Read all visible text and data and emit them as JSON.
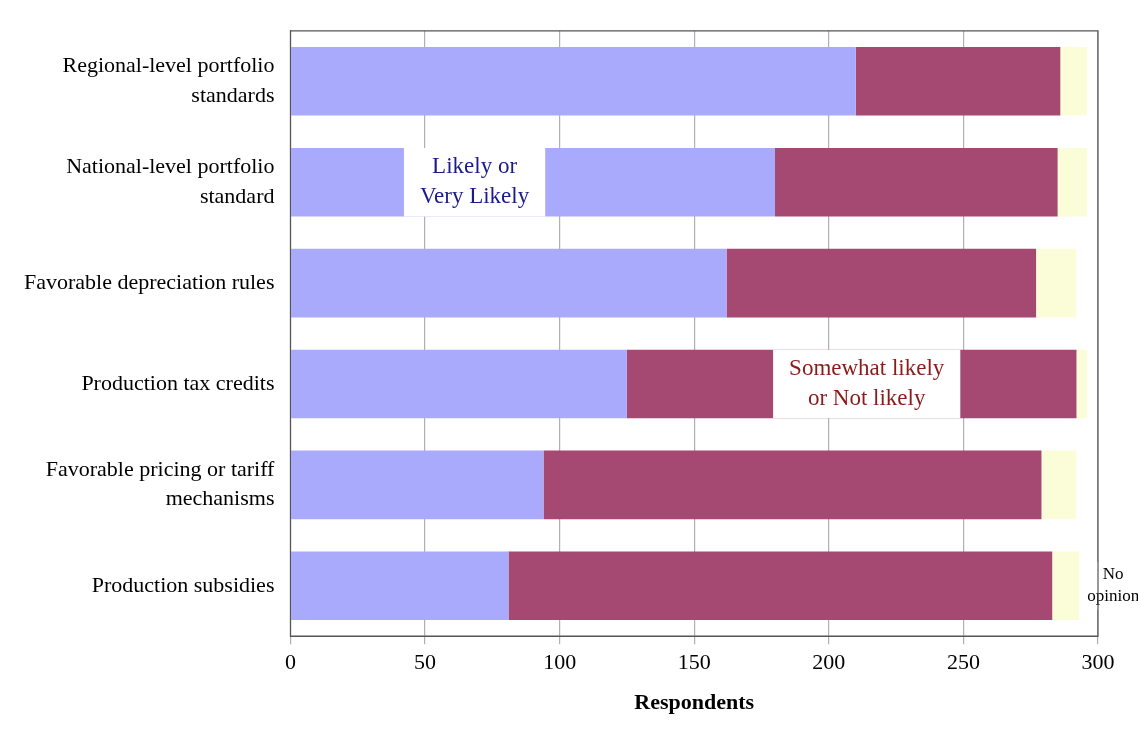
{
  "chart_data": {
    "type": "bar",
    "orientation": "horizontal",
    "stacked": true,
    "categories": [
      "Regional-level portfolio standards",
      "National-level portfolio standard",
      "Favorable depreciation rules",
      "Production tax credits",
      "Favorable pricing or tariff mechanisms",
      "Production subsidies"
    ],
    "series": [
      {
        "name": "Likely or Very Likely",
        "color": "#aaaafc",
        "values": [
          210,
          180,
          162,
          125,
          94,
          81
        ]
      },
      {
        "name": "Somewhat likely or Not likely",
        "color": "#a54872",
        "values": [
          76,
          105,
          115,
          167,
          185,
          202
        ]
      },
      {
        "name": "No opinion",
        "color": "#fbfcd8",
        "values": [
          10,
          11,
          15,
          4,
          13,
          10
        ]
      }
    ],
    "xlim": [
      0,
      300
    ],
    "xticks": [
      0,
      50,
      100,
      150,
      200,
      250,
      300
    ],
    "xlabel": "Respondents",
    "grid": "x",
    "legend": false
  }
}
